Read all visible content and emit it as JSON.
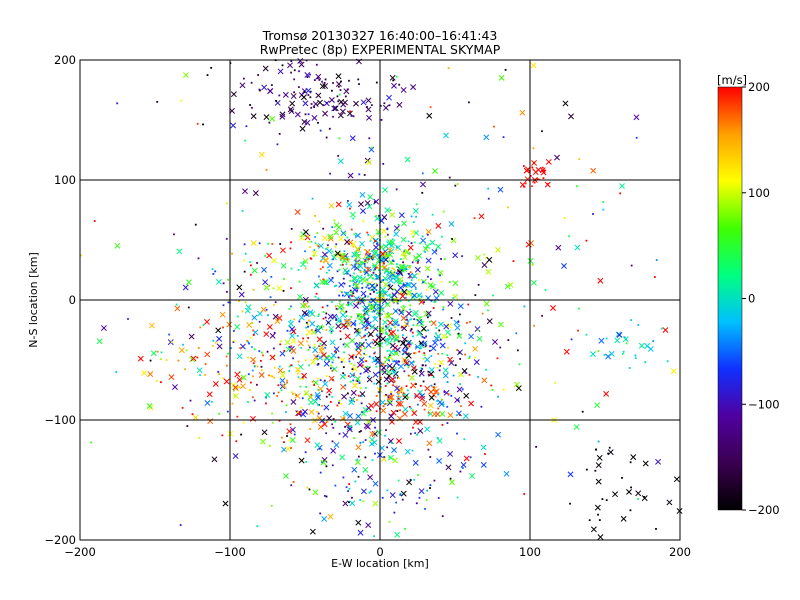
{
  "chart_data": {
    "type": "scatter",
    "title": "Tromsø 20130327 16:40:00–16:41:43",
    "subtitle": "RwPretec (8p) EXPERIMENTAL SKYMAP",
    "xlabel": "E-W location [km]",
    "ylabel": "N-S location [km]",
    "xlim": [
      -200,
      200
    ],
    "ylim": [
      -200,
      200
    ],
    "xticks": [
      -200,
      -100,
      0,
      100,
      200
    ],
    "yticks": [
      -200,
      -100,
      0,
      100,
      200
    ],
    "xtick_labels": [
      "−200",
      "−100",
      "0",
      "100",
      "200"
    ],
    "ytick_labels": [
      "−200",
      "−100",
      "0",
      "100",
      "200"
    ],
    "grid": true,
    "marker_types": [
      "x",
      "dot"
    ],
    "colorbar": {
      "label": "[m/s]",
      "range": [
        -200,
        200
      ],
      "ticks": [
        200,
        100,
        0,
        -100,
        -200
      ],
      "tick_labels": [
        "200",
        "100",
        "0",
        "−100",
        "−200"
      ],
      "colormap": [
        "#000000",
        "#3a0050",
        "#5000a0",
        "#1030ff",
        "#00c0ff",
        "#00ff80",
        "#40ff00",
        "#ffff00",
        "#ffa000",
        "#ff0000"
      ]
    },
    "clusters": [
      {
        "cx": 0,
        "cy": 15,
        "sx": 18,
        "sy": 28,
        "n": 520,
        "vmean": 0,
        "vsd": 70
      },
      {
        "cx": -40,
        "cy": -40,
        "sx": 50,
        "sy": 30,
        "n": 420,
        "vmean": 40,
        "vsd": 110
      },
      {
        "cx": 10,
        "cy": -40,
        "sx": 30,
        "sy": 25,
        "n": 260,
        "vmean": -60,
        "vsd": 100
      },
      {
        "cx": 0,
        "cy": -130,
        "sx": 30,
        "sy": 35,
        "n": 180,
        "vmean": -70,
        "vsd": 80
      },
      {
        "cx": -40,
        "cy": 175,
        "sx": 30,
        "sy": 18,
        "n": 160,
        "vmean": -150,
        "vsd": 40
      },
      {
        "cx": -70,
        "cy": -70,
        "sx": 35,
        "sy": 30,
        "n": 120,
        "vmean": 160,
        "vsd": 40
      },
      {
        "cx": 20,
        "cy": -85,
        "sx": 15,
        "sy": 15,
        "n": 60,
        "vmean": 190,
        "vsd": 20
      },
      {
        "cx": 103,
        "cy": 105,
        "sx": 5,
        "sy": 7,
        "n": 30,
        "vmean": 200,
        "vsd": 10
      },
      {
        "cx": -20,
        "cy": 40,
        "sx": 40,
        "sy": 10,
        "n": 120,
        "vmean": 110,
        "vsd": 70
      },
      {
        "cx": 160,
        "cy": -160,
        "sx": 20,
        "sy": 25,
        "n": 40,
        "vmean": -200,
        "vsd": 5
      },
      {
        "cx": 0,
        "cy": 0,
        "sx": 110,
        "sy": 110,
        "n": 320,
        "vmean": 0,
        "vsd": 140
      },
      {
        "cx": 160,
        "cy": -35,
        "sx": 15,
        "sy": 10,
        "n": 30,
        "vmean": -20,
        "vsd": 40
      }
    ]
  }
}
